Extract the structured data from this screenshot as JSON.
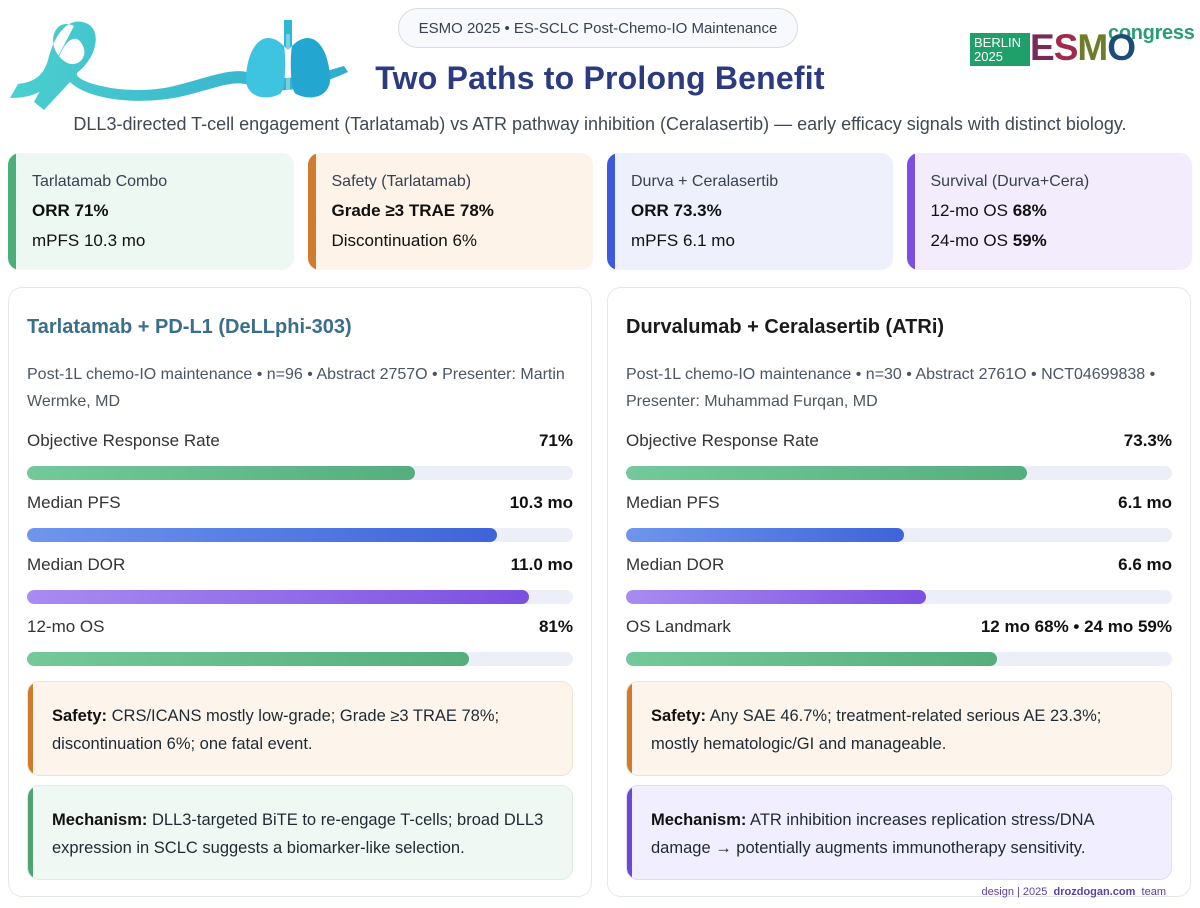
{
  "header": {
    "pill": "ESMO 2025 • ES-SCLC Post-Chemo-IO Maintenance",
    "title": "Two Paths to Prolong Benefit",
    "subtitle": "DLL3-directed T-cell engagement (Tarlatamab) vs ATR pathway inhibition (Ceralasertib) — early efficacy signals with distinct biology.",
    "logo": {
      "congress": "congress",
      "city": "BERLIN",
      "year": "2025",
      "mark": "ESMO"
    }
  },
  "cards": [
    {
      "key": "Tarlatamab Combo",
      "line1_prefix": "",
      "line1_bold": "ORR 71%",
      "line2_prefix": "mPFS 10.3 mo",
      "line2_bold": ""
    },
    {
      "key": "Safety (Tarlatamab)",
      "line1_prefix": "",
      "line1_bold": "Grade ≥3 TRAE 78%",
      "line2_prefix": "Discontinuation 6%",
      "line2_bold": ""
    },
    {
      "key": "Durva + Ceralasertib",
      "line1_prefix": "",
      "line1_bold": "ORR 73.3%",
      "line2_prefix": "mPFS 6.1 mo",
      "line2_bold": ""
    },
    {
      "key": "Survival (Durva+Cera)",
      "line1_prefix": "12-mo OS ",
      "line1_bold": "68%",
      "line2_prefix": "24-mo OS ",
      "line2_bold": "59%"
    }
  ],
  "left": {
    "title": "Tarlatamab + PD-L1 (DeLLphi-303)",
    "meta": "Post-1L chemo-IO maintenance • n=96 • Abstract 2757O • Presenter: Martin Wermke, MD",
    "metrics": [
      {
        "label": "Objective Response Rate",
        "value": "71%",
        "fill": 0.71,
        "color": "green"
      },
      {
        "label": "Median PFS",
        "value": "10.3 mo",
        "fill": 0.86,
        "color": "blue"
      },
      {
        "label": "Median DOR",
        "value": "11.0 mo",
        "fill": 0.92,
        "color": "purple"
      },
      {
        "label": "12-mo OS",
        "value": "81%",
        "fill": 0.81,
        "color": "green"
      }
    ],
    "safety_label": "Safety:",
    "safety_text": " CRS/ICANS mostly low-grade; Grade ≥3 TRAE 78%; discontinuation 6%; one fatal event.",
    "mechanism_label": "Mechanism:",
    "mechanism_text": " DLL3-targeted BiTE to re-engage T-cells; broad DLL3 expression in SCLC suggests a biomarker-like selection."
  },
  "right": {
    "title": "Durvalumab + Ceralasertib (ATRi)",
    "meta": "Post-1L chemo-IO maintenance • n=30 • Abstract 2761O • NCT04699838 • Presenter: Muhammad Furqan, MD",
    "metrics": [
      {
        "label": "Objective Response Rate",
        "value": "73.3%",
        "fill": 0.735,
        "color": "green"
      },
      {
        "label": "Median PFS",
        "value": "6.1 mo",
        "fill": 0.51,
        "color": "blue"
      },
      {
        "label": "Median DOR",
        "value": "6.6 mo",
        "fill": 0.55,
        "color": "purple"
      },
      {
        "label": "OS Landmark",
        "value": "12 mo 68% • 24 mo 59%",
        "fill": 0.68,
        "color": "green"
      }
    ],
    "safety_label": "Safety:",
    "safety_text": " Any SAE 46.7%; treatment-related serious AE 23.3%; mostly hematologic/GI and manageable.",
    "mechanism_label": "Mechanism:",
    "mechanism_text": " ATR inhibition increases replication stress/DNA damage → potentially augments immunotherapy sensitivity."
  },
  "footer": {
    "pre": "design | 2025",
    "brand": "drozdogan.com",
    "post": "team"
  }
}
